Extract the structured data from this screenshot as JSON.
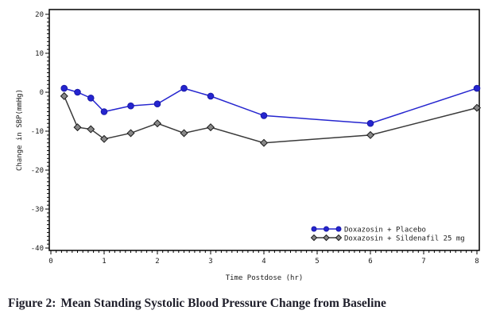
{
  "figure": {
    "label": "Figure 2:",
    "title": "Mean Standing Systolic Blood Pressure Change from Baseline"
  },
  "chart_data": {
    "type": "line",
    "title": "",
    "xlabel": "Time Postdose (hr)",
    "ylabel": "Change in SBP(mmHg)",
    "xlim": [
      0,
      8
    ],
    "ylim": [
      -40,
      20
    ],
    "x_ticks": [
      0,
      1,
      2,
      3,
      4,
      5,
      6,
      7,
      8
    ],
    "y_ticks": [
      20,
      10,
      0,
      -10,
      -20,
      -30,
      -40
    ],
    "x_minor_step": 0.1,
    "y_minor_step": 1,
    "grid": false,
    "legend_position": "inside-bottom-right",
    "x": [
      0.25,
      0.5,
      0.75,
      1,
      1.5,
      2,
      2.5,
      3,
      4,
      6,
      8
    ],
    "series": [
      {
        "name": "Doxazosin + Placebo",
        "marker": "circle",
        "color": "#2525cf",
        "marker_fill": "#2525cf",
        "marker_stroke": "#1a1aa8",
        "values": [
          1,
          0,
          -1.5,
          -5,
          -3.5,
          -3,
          1,
          -1,
          -6,
          -8,
          1
        ]
      },
      {
        "name": "Doxazosin + Sildenafil 25 mg",
        "marker": "diamond",
        "color": "#3a3a3a",
        "marker_fill": "#888888",
        "marker_stroke": "#1a1a1a",
        "values": [
          -1,
          -9,
          -9.5,
          -12,
          -10.5,
          -8,
          -10.5,
          -9,
          -13,
          -11,
          -4
        ]
      }
    ]
  },
  "colors": {
    "axis": "#000000",
    "tick_label": "#1b1b1b",
    "caption": "#1e1e2a",
    "background": "#ffffff"
  }
}
